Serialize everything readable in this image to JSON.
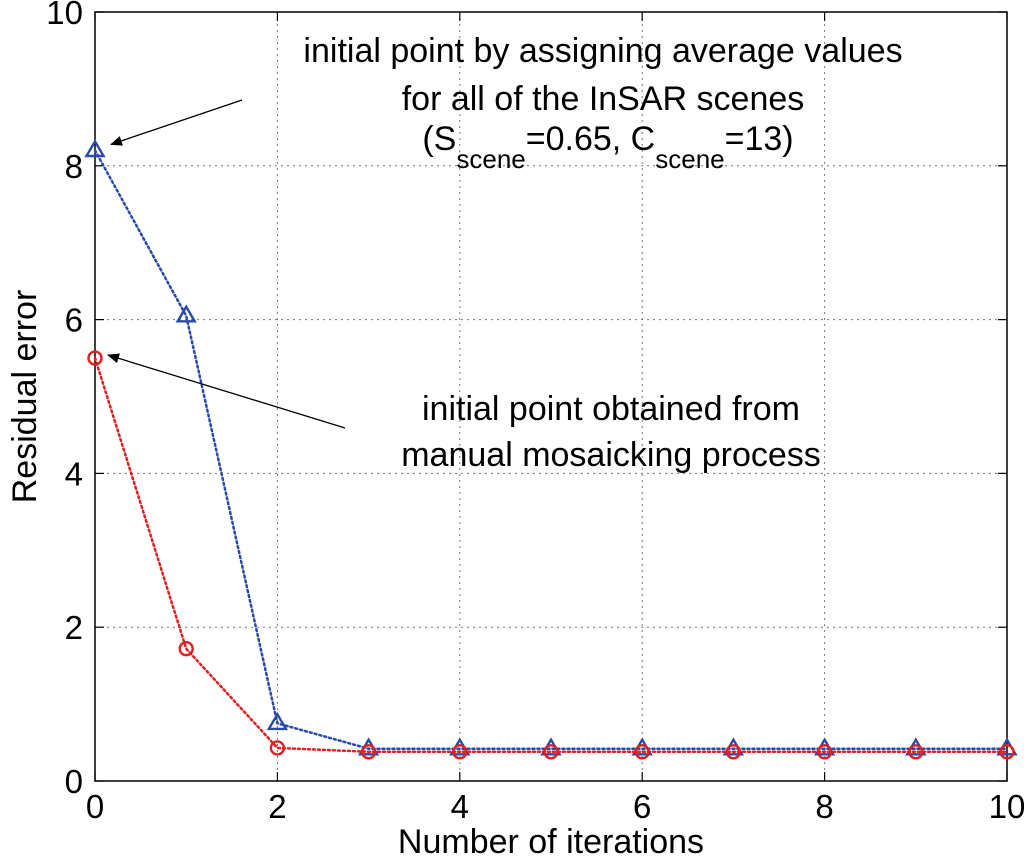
{
  "chart_data": {
    "type": "line",
    "title": "",
    "xlabel": "Number of iterations",
    "ylabel": "Residual error",
    "xlim": [
      0,
      10
    ],
    "ylim": [
      0,
      10
    ],
    "x_ticks": [
      "0",
      "2",
      "4",
      "6",
      "8",
      "10"
    ],
    "y_ticks": [
      "0",
      "2",
      "4",
      "6",
      "8",
      "10"
    ],
    "grid": true,
    "legend": "none",
    "x": [
      0,
      1,
      2,
      3,
      4,
      5,
      6,
      7,
      8,
      9,
      10
    ],
    "series": [
      {
        "name": "average values initial point",
        "color": "#2a4aa8",
        "marker": "triangle",
        "linestyle": "dotted",
        "values": [
          8.2,
          6.05,
          0.75,
          0.42,
          0.42,
          0.42,
          0.42,
          0.42,
          0.42,
          0.42,
          0.42
        ]
      },
      {
        "name": "manual mosaicking initial point",
        "color": "#e02020",
        "marker": "circle",
        "linestyle": "dotted",
        "values": [
          5.5,
          1.72,
          0.43,
          0.38,
          0.38,
          0.38,
          0.38,
          0.38,
          0.38,
          0.38,
          0.38
        ]
      }
    ],
    "annotations": [
      {
        "lines": [
          "initial point by assigning average values",
          "for all of the InSAR scenes"
        ],
        "formula": {
          "open": "(S",
          "sub1": "scene",
          "mid": "=0.65, C",
          "sub2": "scene",
          "close": "=13)"
        },
        "arrow_to": [
          0,
          8.2
        ]
      },
      {
        "lines": [
          "initial point obtained from",
          "manual mosaicking process"
        ],
        "arrow_to": [
          0,
          5.5
        ]
      }
    ]
  }
}
